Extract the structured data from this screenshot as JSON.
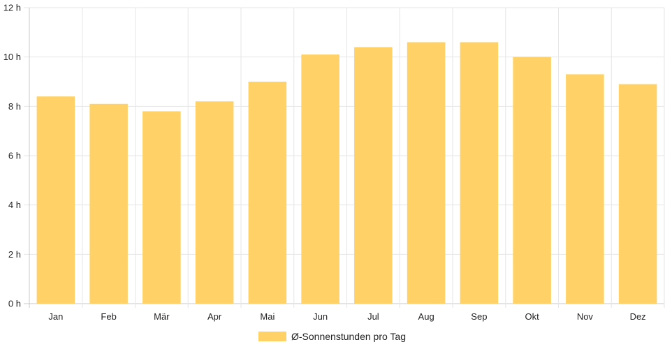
{
  "chart_data": {
    "type": "bar",
    "categories": [
      "Jan",
      "Feb",
      "Mär",
      "Apr",
      "Mai",
      "Jun",
      "Jul",
      "Aug",
      "Sep",
      "Okt",
      "Nov",
      "Dez"
    ],
    "series": [
      {
        "name": "Ø-Sonnenstunden pro Tag",
        "values": [
          8.4,
          8.1,
          7.8,
          8.2,
          9.0,
          10.1,
          10.4,
          10.6,
          10.6,
          10.0,
          9.3,
          8.9
        ],
        "color": "#ffd166"
      }
    ],
    "ylim": [
      0,
      12
    ],
    "yticks": [
      "0 h",
      "2 h",
      "4 h",
      "6 h",
      "8 h",
      "10 h",
      "12 h"
    ],
    "grid": true,
    "legend_position": "bottom"
  }
}
